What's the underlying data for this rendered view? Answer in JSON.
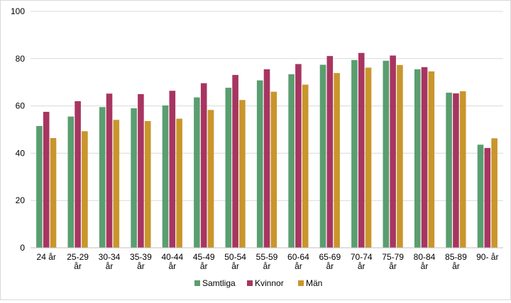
{
  "chart_data": {
    "type": "bar",
    "categories": [
      [
        "24 år"
      ],
      [
        "25-29",
        "år"
      ],
      [
        "30-34",
        "år"
      ],
      [
        "35-39",
        "år"
      ],
      [
        "40-44",
        "år"
      ],
      [
        "45-49",
        "år"
      ],
      [
        "50-54",
        "år"
      ],
      [
        "55-59",
        "år"
      ],
      [
        "60-64",
        "år"
      ],
      [
        "65-69",
        "år"
      ],
      [
        "70-74",
        "år"
      ],
      [
        "75-79",
        "år"
      ],
      [
        "80-84",
        "år"
      ],
      [
        "85-89",
        "år"
      ],
      [
        "90- år"
      ]
    ],
    "series": [
      {
        "name": "Samtliga",
        "color": "#5a9e6f",
        "values": [
          51.5,
          55.5,
          59.5,
          59.0,
          60.2,
          63.6,
          67.7,
          70.8,
          73.4,
          77.4,
          79.4,
          79.1,
          75.5,
          65.6,
          43.6
        ]
      },
      {
        "name": "Kvinnor",
        "color": "#a83561",
        "values": [
          57.5,
          62.0,
          65.2,
          65.0,
          66.4,
          69.6,
          73.1,
          75.5,
          77.7,
          81.1,
          82.4,
          81.3,
          76.4,
          65.3,
          42.2
        ]
      },
      {
        "name": "Män",
        "color": "#c9962c",
        "values": [
          46.4,
          49.3,
          54.1,
          53.6,
          54.6,
          58.3,
          62.5,
          66.0,
          69.0,
          73.9,
          76.2,
          77.3,
          74.6,
          66.2,
          46.3
        ]
      }
    ],
    "ylim": [
      0,
      100
    ],
    "yticks": [
      0,
      20,
      40,
      60,
      80,
      100
    ],
    "grid": true,
    "legend_position": "bottom"
  }
}
